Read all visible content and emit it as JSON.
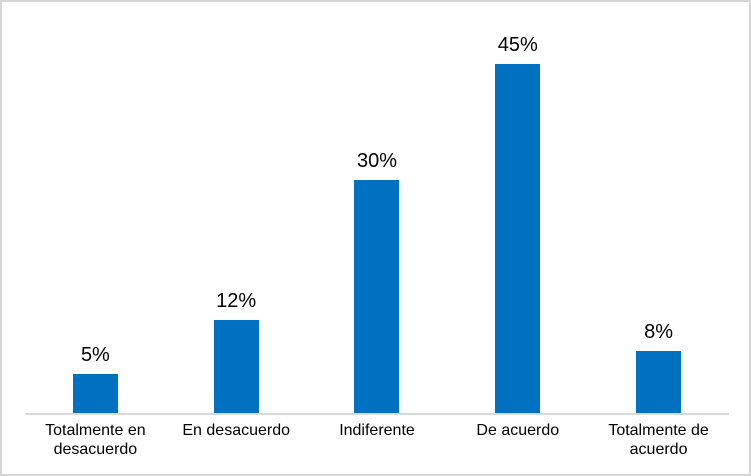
{
  "chart_data": {
    "type": "bar",
    "title": "",
    "xlabel": "",
    "ylabel": "",
    "categories": [
      "Totalmente en desacuerdo",
      "En desacuerdo",
      "Indiferente",
      "De acuerdo",
      "Totalmente de acuerdo"
    ],
    "values": [
      5,
      12,
      30,
      45,
      8
    ],
    "data_labels": [
      "5%",
      "12%",
      "30%",
      "45%",
      "8%"
    ],
    "grid": false,
    "legend_position": "none",
    "colors": {
      "bar": "#0070C0",
      "axis_line": "#D9D9D9",
      "frame_border": "#D6D6D6",
      "text": "#000000",
      "background": "#FFFFFF"
    }
  }
}
